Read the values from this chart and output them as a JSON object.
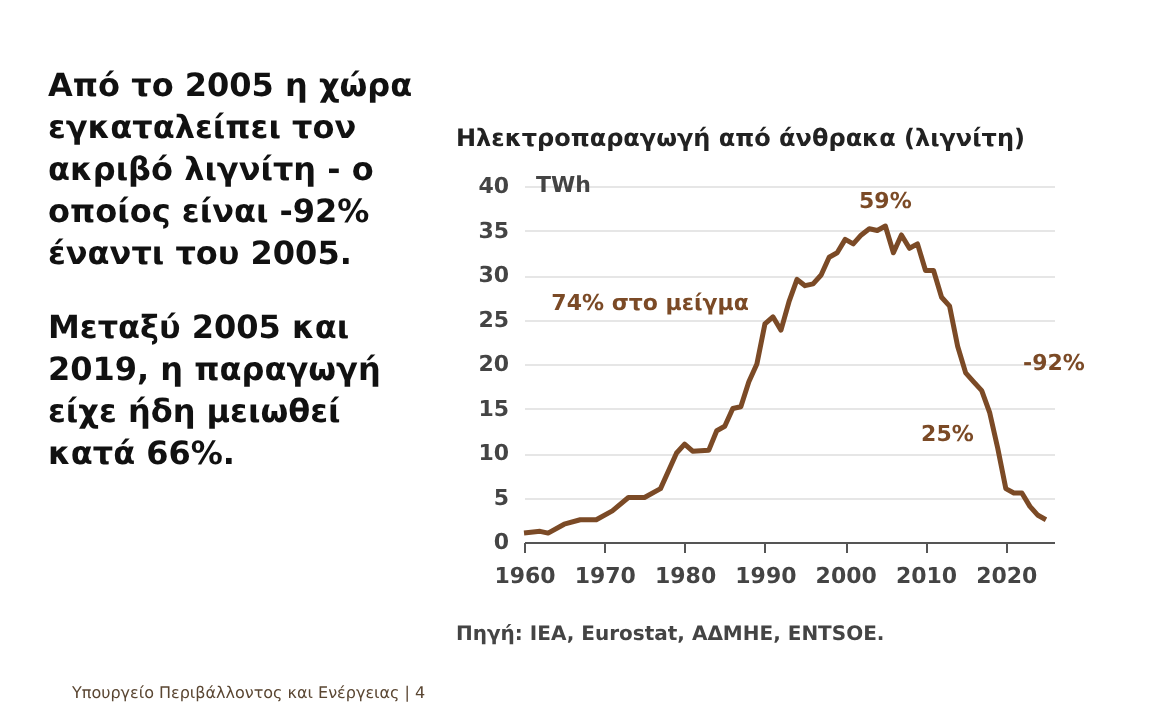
{
  "chart_data": {
    "type": "line",
    "title": "Ηλεκτροπαραγωγή από άνθρακα (λιγνίτη)",
    "ylabel": "TWh",
    "x": [
      1960,
      1962,
      1963,
      1965,
      1967,
      1969,
      1971,
      1973,
      1975,
      1977,
      1979,
      1980,
      1981,
      1983,
      1984,
      1985,
      1986,
      1987,
      1988,
      1989,
      1990,
      1991,
      1992,
      1993,
      1994,
      1995,
      1996,
      1997,
      1998,
      1999,
      2000,
      2001,
      2002,
      2003,
      2004,
      2005,
      2006,
      2007,
      2008,
      2009,
      2010,
      2011,
      2012,
      2013,
      2014,
      2015,
      2016,
      2017,
      2018,
      2019,
      2020,
      2021,
      2022,
      2023,
      2024,
      2025
    ],
    "series": [
      {
        "color": "#7b4a26",
        "values": [
          1,
          1.2,
          1,
          2,
          2.5,
          2.5,
          3.5,
          5,
          5,
          6,
          10,
          11,
          10.2,
          10.3,
          12.5,
          13,
          15,
          15.2,
          18,
          20,
          24.5,
          25.3,
          23.8,
          27,
          29.5,
          28.8,
          29,
          30,
          32,
          32.5,
          34,
          33.5,
          34.5,
          35.2,
          35,
          35.5,
          32.5,
          34.5,
          33,
          33.5,
          30.5,
          30.5,
          27.5,
          26.5,
          22,
          19,
          18,
          17,
          14.5,
          10.5,
          6,
          5.5,
          5.5,
          4,
          3,
          2.5
        ]
      }
    ],
    "xlim": [
      1960,
      2026
    ],
    "xticks": [
      1960,
      1970,
      1980,
      1990,
      2000,
      2010,
      2020
    ],
    "ylim": [
      0,
      40
    ],
    "yticks": [
      0,
      5,
      10,
      15,
      20,
      25,
      30,
      35,
      40
    ],
    "grid": "y",
    "marker": "none",
    "line_style": "solid",
    "annotations": [
      {
        "text": "74% στο μείγμα",
        "x": 1990,
        "y": 25
      },
      {
        "text": "59%",
        "x": 2005,
        "y": 35.5
      },
      {
        "text": "25%",
        "x": 2018,
        "y": 12
      },
      "Από το 2005 η χώρα εγκαταλείπει τον ακριβό λιγνίτη - ο οποίος είναι -92% έναντι του 2005.",
      "Μεταξύ 2005 και 2019, η παραγωγή είχε ήδη μειωθεί κατά 66%.",
      "-92%",
      "Πηγή: IEA, Eurostat, ΑΔΜΗΕ, ENTSOE.",
      "Υπουργείο Περιβάλλοντος και Ενέργειας | 4"
    ]
  }
}
